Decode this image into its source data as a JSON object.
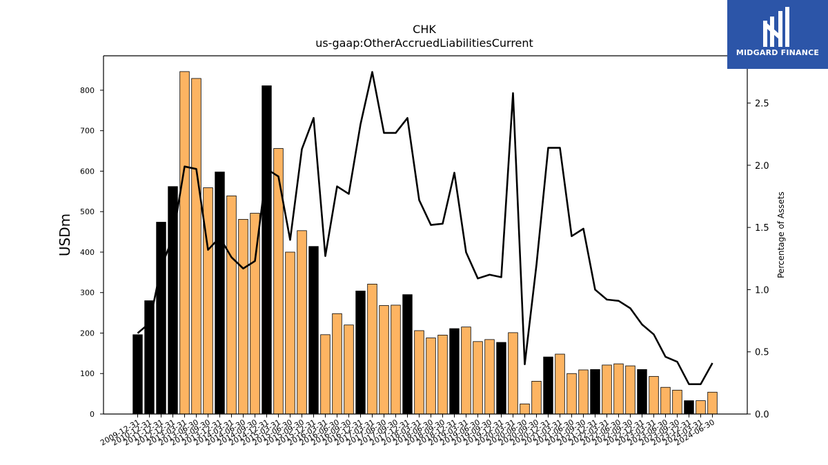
{
  "chart_data": {
    "type": "bar",
    "title": "CHK",
    "subtitle": "us-gaap:OtherAccruedLiabilitiesCurrent",
    "ylabel": "USDm",
    "y2label": "Percentage of Assets",
    "ylim": [
      0,
      885
    ],
    "y2lim": [
      0,
      2.88
    ],
    "yticks": [
      0,
      100,
      200,
      300,
      400,
      500,
      600,
      700,
      800
    ],
    "y2ticks": [
      0.0,
      0.5,
      1.0,
      1.5,
      2.0,
      2.5
    ],
    "colors": {
      "annual": "#000000",
      "quarterly": "#fdb462",
      "line": "#000000"
    },
    "categories": [
      "2009-12-31",
      "2010-12-31",
      "2011-12-31",
      "2012-12-31",
      "2013-03-31",
      "2013-06-30",
      "2013-09-30",
      "2013-12-31",
      "2014-03-31",
      "2014-06-30",
      "2014-09-30",
      "2014-12-31",
      "2015-03-31",
      "2015-06-30",
      "2015-09-30",
      "2015-12-31",
      "2016-03-31",
      "2016-06-30",
      "2016-09-30",
      "2016-12-31",
      "2017-03-31",
      "2017-06-30",
      "2017-09-30",
      "2017-12-31",
      "2018-03-31",
      "2018-06-30",
      "2018-09-30",
      "2018-12-31",
      "2019-03-31",
      "2019-06-30",
      "2019-09-30",
      "2019-12-31",
      "2020-03-31",
      "2020-06-30",
      "2020-09-30",
      "2020-12-31",
      "2021-03-31",
      "2021-06-30",
      "2021-09-30",
      "2021-12-31",
      "2022-03-31",
      "2022-06-30",
      "2022-09-30",
      "2022-12-31",
      "2023-03-31",
      "2023-06-30",
      "2023-09-30",
      "2023-12-31",
      "2024-03-31",
      "2024-06-30"
    ],
    "series": [
      {
        "type": "bar",
        "values": [
          196,
          280,
          474,
          562,
          846,
          829,
          559,
          598,
          539,
          481,
          496,
          811,
          656,
          400,
          453,
          414,
          196,
          248,
          220,
          304,
          321,
          268,
          269,
          295,
          206,
          188,
          195,
          211,
          215,
          179,
          184,
          177,
          201,
          25,
          81,
          141,
          148,
          100,
          109,
          110,
          121,
          124,
          119,
          110,
          93,
          66,
          59,
          33,
          33,
          54
        ],
        "kinds": [
          "A",
          "A",
          "A",
          "A",
          "Q",
          "Q",
          "Q",
          "A",
          "Q",
          "Q",
          "Q",
          "A",
          "Q",
          "Q",
          "Q",
          "A",
          "Q",
          "Q",
          "Q",
          "A",
          "Q",
          "Q",
          "Q",
          "A",
          "Q",
          "Q",
          "Q",
          "A",
          "Q",
          "Q",
          "Q",
          "A",
          "Q",
          "Q",
          "Q",
          "A",
          "Q",
          "Q",
          "Q",
          "A",
          "Q",
          "Q",
          "Q",
          "A",
          "Q",
          "Q",
          "Q",
          "A",
          "Q",
          "Q"
        ]
      },
      {
        "type": "line",
        "axis": "right",
        "values": [
          0.65,
          0.73,
          1.18,
          1.42,
          1.99,
          1.97,
          1.32,
          1.42,
          1.26,
          1.17,
          1.23,
          1.97,
          1.91,
          1.4,
          2.13,
          2.38,
          1.27,
          1.83,
          1.77,
          2.33,
          2.75,
          2.26,
          2.26,
          2.38,
          1.72,
          1.52,
          1.53,
          1.94,
          1.3,
          1.09,
          1.12,
          1.1,
          2.58,
          0.4,
          1.2,
          2.14,
          2.14,
          1.43,
          1.49,
          1.0,
          0.92,
          0.91,
          0.85,
          0.72,
          0.64,
          0.46,
          0.42,
          0.24,
          0.24,
          0.41
        ]
      }
    ]
  },
  "logo": {
    "text": "MIDGARD FINANCE"
  }
}
